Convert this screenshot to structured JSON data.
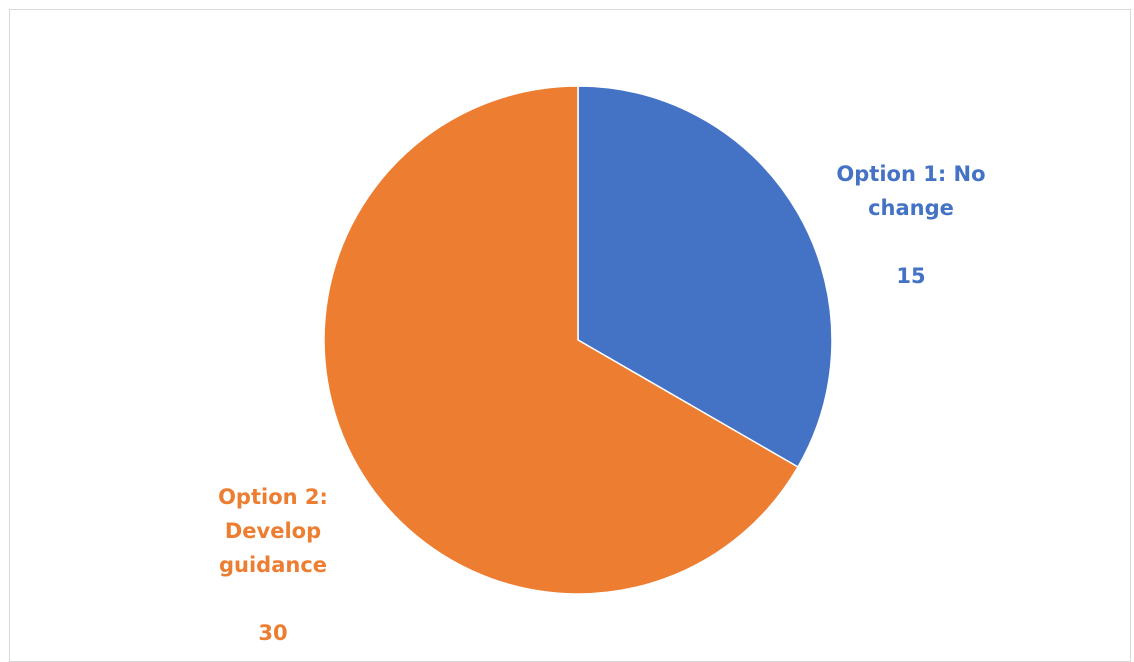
{
  "chart_data": {
    "type": "pie",
    "title": "",
    "start_angle_deg": 0,
    "direction": "clockwise",
    "slices": [
      {
        "label": "Option 1: No\nchange",
        "value": 15,
        "value_label": "15",
        "color": "#4472C4"
      },
      {
        "label": "Option 2:\nDevelop\nguidance",
        "value": 30,
        "value_label": "30",
        "color": "#ED7D31"
      }
    ],
    "legend": "none",
    "data_labels": "outside"
  }
}
